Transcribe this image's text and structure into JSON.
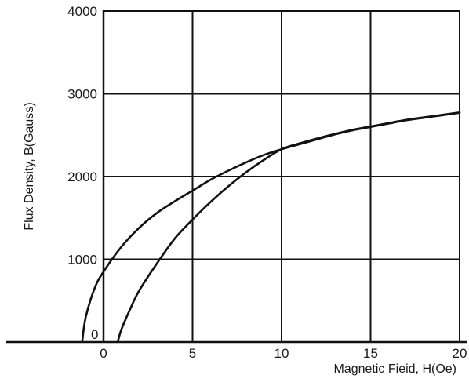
{
  "chart_data": {
    "type": "line",
    "xlabel": "Magnetic Fieid, H(Oe)",
    "ylabel": "Flux Density, B(Gauss)",
    "xlim": [
      -5,
      20
    ],
    "ylim": [
      -40,
      4000
    ],
    "xticks": [
      0,
      5,
      10,
      15,
      20
    ],
    "yticks": [
      1000,
      2000,
      3000,
      4000
    ],
    "xtick_labels": [
      "0",
      "5",
      "10",
      "15",
      "20"
    ],
    "ytick_labels": [
      "1000",
      "2000",
      "3000",
      "4000"
    ],
    "origin_label": "0",
    "grid": true,
    "series": [
      {
        "x": [
          -1.2,
          -1.0,
          -0.5,
          0,
          1,
          2,
          3,
          4,
          5,
          6,
          7,
          8,
          9,
          10,
          11,
          12,
          13,
          14,
          15,
          16,
          17,
          18,
          19,
          20
        ],
        "y": [
          0,
          300,
          650,
          850,
          1150,
          1380,
          1560,
          1700,
          1830,
          1960,
          2070,
          2170,
          2260,
          2330,
          2390,
          2450,
          2510,
          2560,
          2600,
          2640,
          2680,
          2710,
          2740,
          2770
        ]
      },
      {
        "x": [
          0.8,
          1.0,
          1.5,
          2,
          3,
          4,
          5,
          6,
          7,
          8,
          9,
          10,
          11,
          12,
          13,
          14,
          15,
          16,
          17,
          18,
          19,
          20
        ],
        "y": [
          0,
          150,
          400,
          620,
          950,
          1250,
          1480,
          1690,
          1880,
          2050,
          2200,
          2330,
          2400,
          2460,
          2515,
          2565,
          2605,
          2645,
          2685,
          2715,
          2745,
          2775
        ]
      }
    ]
  }
}
